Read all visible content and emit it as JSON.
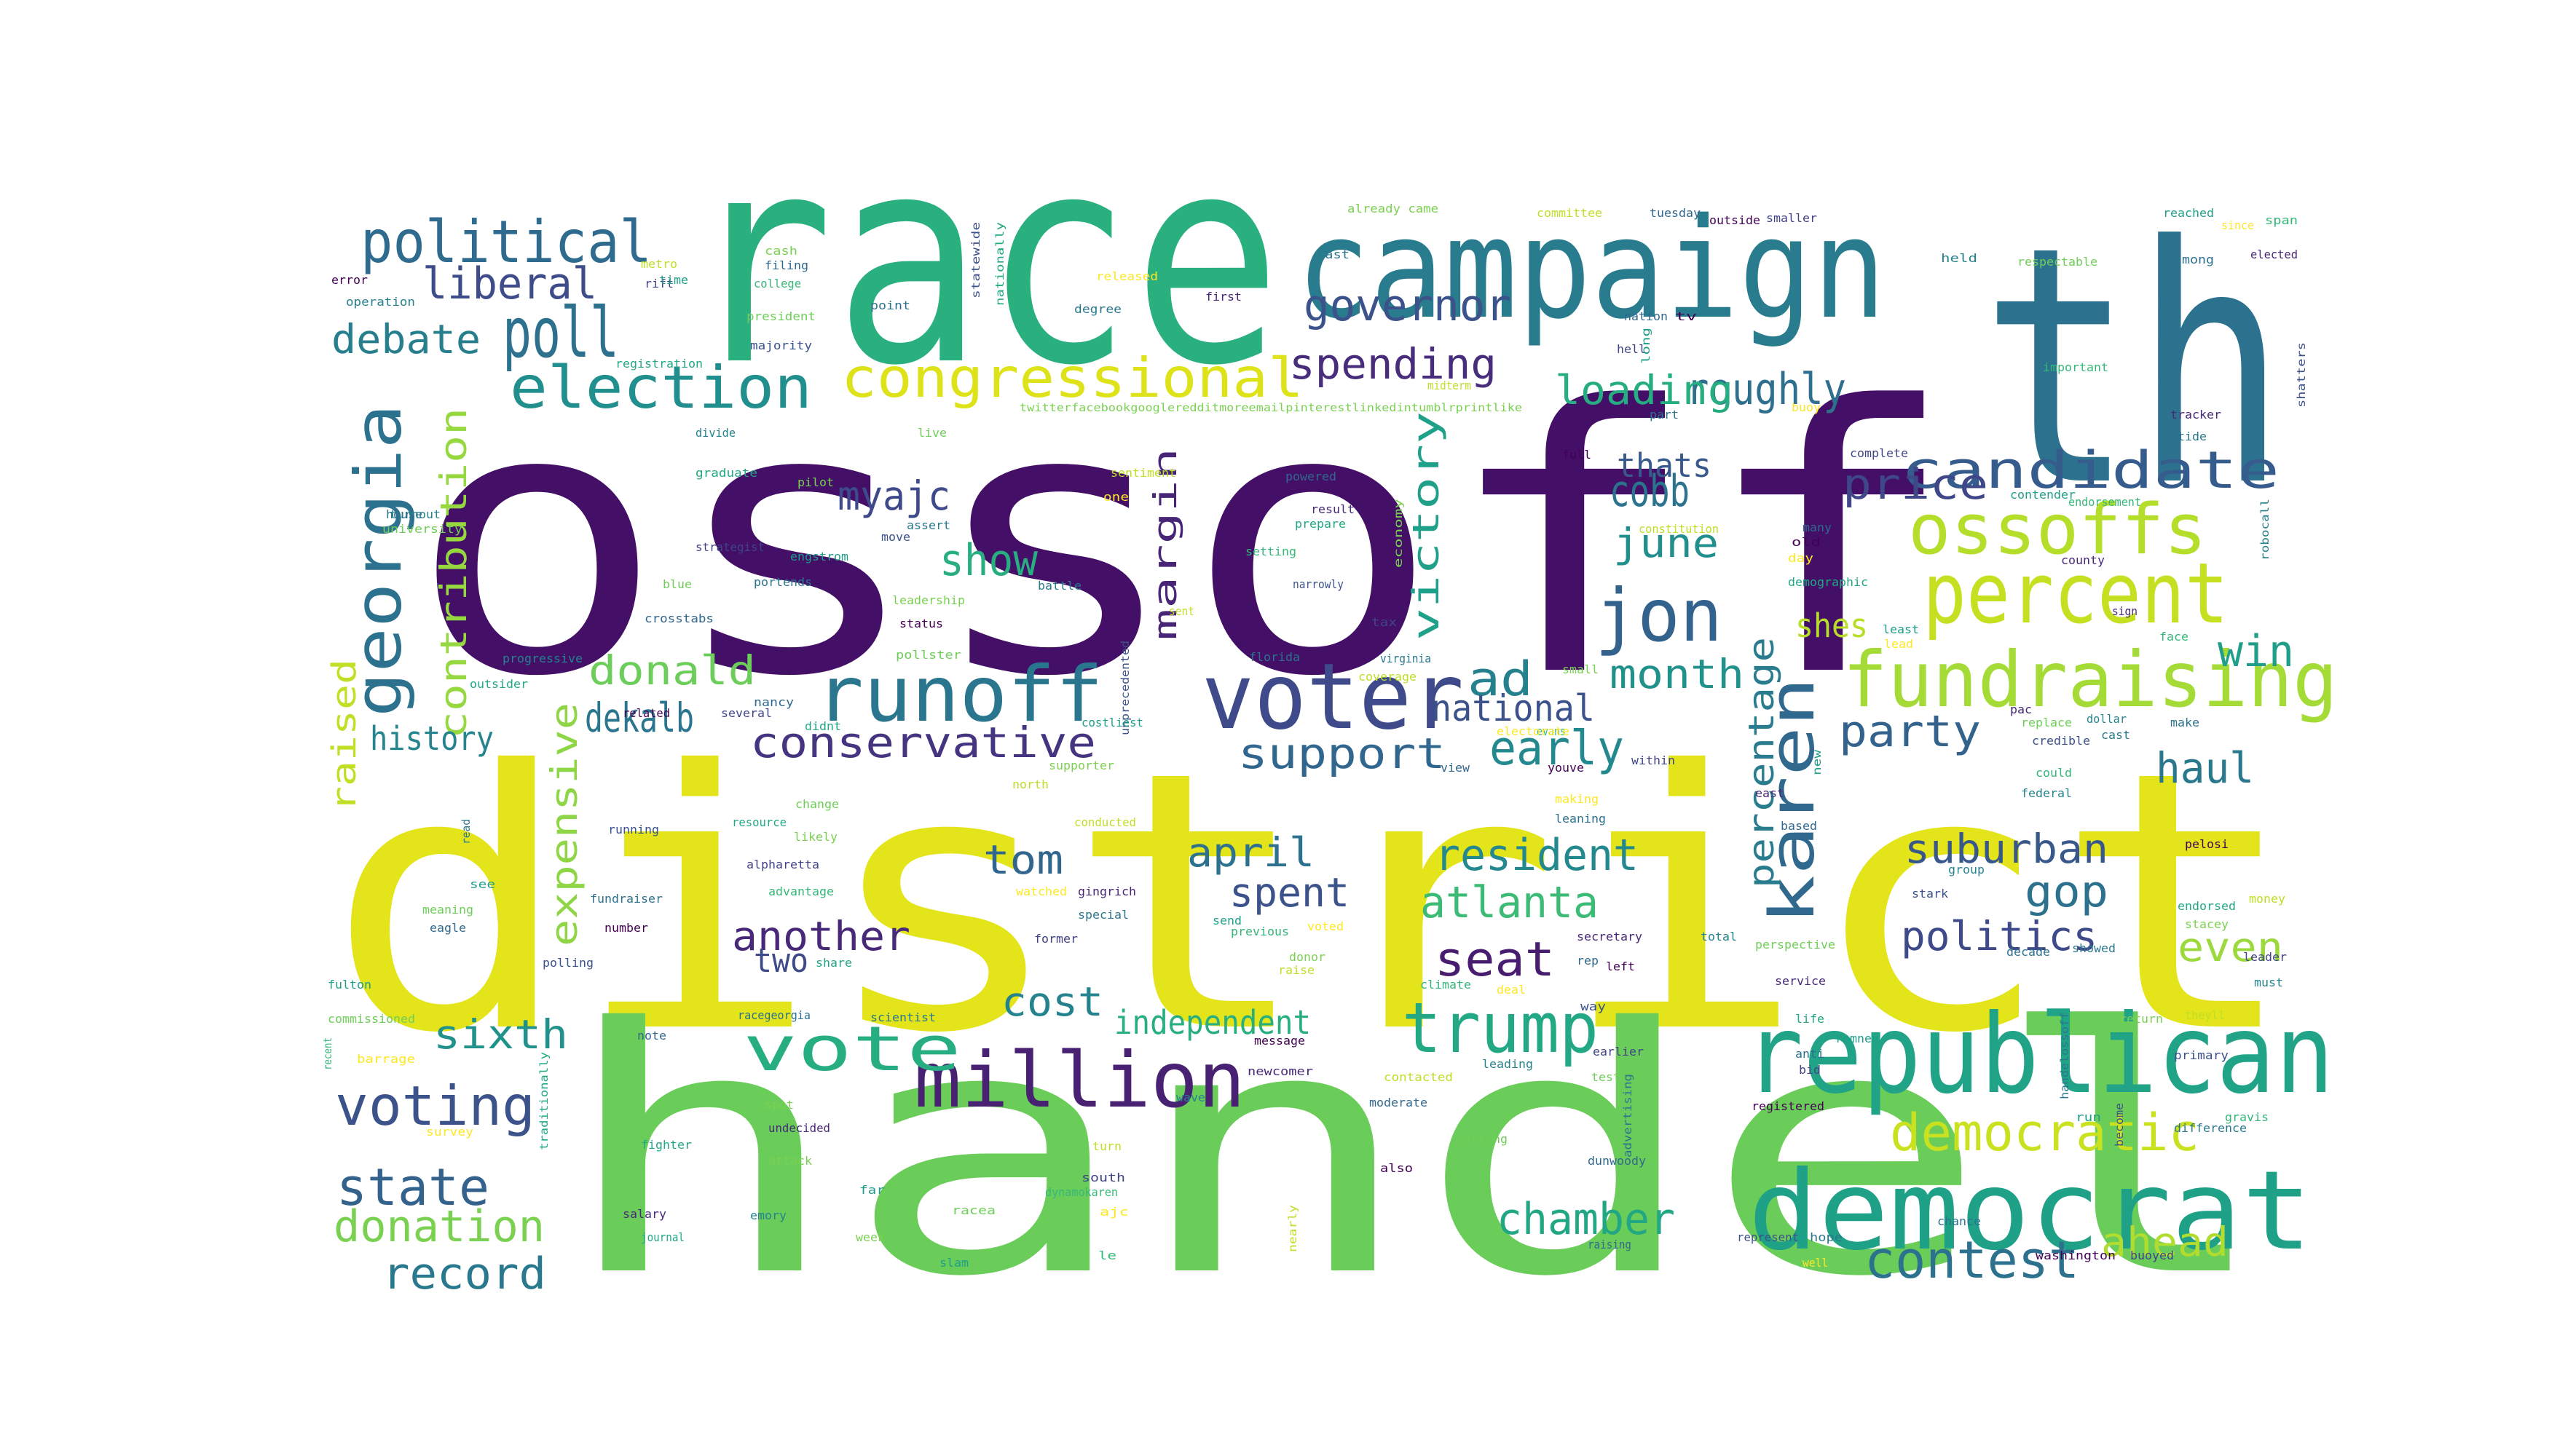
{
  "word_cloud": {
    "words": [
      {
        "text": "ossoff",
        "color": "#440f66"
      },
      {
        "text": "district",
        "color": "#e3e41a"
      },
      {
        "text": "handel",
        "color": "#6bcd59"
      },
      {
        "text": "race",
        "color": "#2ab07f"
      },
      {
        "text": "th",
        "color": "#2c728e"
      },
      {
        "text": "campaign",
        "color": "#297b8e"
      },
      {
        "text": "republican",
        "color": "#20a386"
      },
      {
        "text": "democrat",
        "color": "#1fa187"
      },
      {
        "text": "voter",
        "color": "#3e4a89"
      },
      {
        "text": "percent",
        "color": "#c5e021"
      },
      {
        "text": "fundraising",
        "color": "#a5db36"
      },
      {
        "text": "runoff",
        "color": "#2a768e"
      },
      {
        "text": "million",
        "color": "#482173"
      },
      {
        "text": "georgia",
        "color": "#2c718e"
      },
      {
        "text": "jon",
        "color": "#33638d"
      },
      {
        "text": "ossoffs",
        "color": "#b5de2b"
      },
      {
        "text": "karen",
        "color": "#31688e"
      },
      {
        "text": "trump",
        "color": "#22a884"
      },
      {
        "text": "political",
        "color": "#2f6b8e"
      },
      {
        "text": "congressional",
        "color": "#dde318"
      },
      {
        "text": "election",
        "color": "#218f8d"
      },
      {
        "text": "poll",
        "color": "#2d718e"
      },
      {
        "text": "vote",
        "color": "#26ad81"
      },
      {
        "text": "candidate",
        "color": "#365c8d"
      },
      {
        "text": "democratic",
        "color": "#cae11f"
      },
      {
        "text": "voting",
        "color": "#3b528b"
      },
      {
        "text": "chamber",
        "color": "#22a785"
      },
      {
        "text": "contest",
        "color": "#2c728e"
      },
      {
        "text": "state",
        "color": "#33638d"
      },
      {
        "text": "donation",
        "color": "#7ad151"
      },
      {
        "text": "record",
        "color": "#2a788e"
      },
      {
        "text": "liberal",
        "color": "#3e4c8a"
      },
      {
        "text": "governor",
        "color": "#3b528b"
      },
      {
        "text": "spending",
        "color": "#472d7b"
      },
      {
        "text": "roughly",
        "color": "#2e6f8e"
      },
      {
        "text": "loading",
        "color": "#26ad81"
      },
      {
        "text": "debate",
        "color": "#277f8e"
      },
      {
        "text": "myajc",
        "color": "#3e4a89"
      },
      {
        "text": "show",
        "color": "#28ae80"
      },
      {
        "text": "price",
        "color": "#3f4788"
      },
      {
        "text": "thats",
        "color": "#38598c"
      },
      {
        "text": "cobb",
        "color": "#2c738e"
      },
      {
        "text": "june",
        "color": "#218f8d"
      },
      {
        "text": "contribution",
        "color": "#95d840"
      },
      {
        "text": "margin",
        "color": "#482576"
      },
      {
        "text": "victory",
        "color": "#1fa088"
      },
      {
        "text": "donald",
        "color": "#6ccd5a"
      },
      {
        "text": "ad",
        "color": "#26818e"
      },
      {
        "text": "month",
        "color": "#21918c"
      },
      {
        "text": "shes",
        "color": "#b8de29"
      },
      {
        "text": "win",
        "color": "#1f9e89"
      },
      {
        "text": "percentage",
        "color": "#297b8e"
      },
      {
        "text": "party",
        "color": "#33638d"
      },
      {
        "text": "national",
        "color": "#3b528b"
      },
      {
        "text": "early",
        "color": "#23898e"
      },
      {
        "text": "support",
        "color": "#31668e"
      },
      {
        "text": "conservative",
        "color": "#453581"
      },
      {
        "text": "dekalb",
        "color": "#2b758e"
      },
      {
        "text": "history",
        "color": "#25848e"
      },
      {
        "text": "raised",
        "color": "#c0df25"
      },
      {
        "text": "expensive",
        "color": "#8ed645"
      },
      {
        "text": "haul",
        "color": "#2a788e"
      },
      {
        "text": "resident",
        "color": "#23898e"
      },
      {
        "text": "april",
        "color": "#2c718e"
      },
      {
        "text": "spent",
        "color": "#3b528b"
      },
      {
        "text": "tom",
        "color": "#31668e"
      },
      {
        "text": "atlanta",
        "color": "#3bbb75"
      },
      {
        "text": "another",
        "color": "#482878"
      },
      {
        "text": "two",
        "color": "#3e4a89"
      },
      {
        "text": "seat",
        "color": "#481c6e"
      },
      {
        "text": "suburban",
        "color": "#38588c"
      },
      {
        "text": "gop",
        "color": "#2c718e"
      },
      {
        "text": "politics",
        "color": "#3e4a89"
      },
      {
        "text": "even",
        "color": "#9bd93c"
      },
      {
        "text": "cost",
        "color": "#25838e"
      },
      {
        "text": "sixth",
        "color": "#21918c"
      },
      {
        "text": "independent",
        "color": "#29af7f"
      },
      {
        "text": "ahead",
        "color": "#b0dd2f"
      },
      {
        "text": "already came"
      },
      {
        "text": "committee"
      },
      {
        "text": "tuesday"
      },
      {
        "text": "outside"
      },
      {
        "text": "smaller"
      },
      {
        "text": "reached"
      },
      {
        "text": "span"
      },
      {
        "text": "since"
      },
      {
        "text": "elected"
      },
      {
        "text": "held"
      },
      {
        "text": "respectable"
      },
      {
        "text": "among"
      },
      {
        "text": "last"
      },
      {
        "text": "statewide"
      },
      {
        "text": "nationally"
      },
      {
        "text": "cash"
      },
      {
        "text": "metro"
      },
      {
        "text": "filing"
      },
      {
        "text": "error"
      },
      {
        "text": "rift"
      },
      {
        "text": "time"
      },
      {
        "text": "college"
      },
      {
        "text": "released"
      },
      {
        "text": "first"
      },
      {
        "text": "operation"
      },
      {
        "text": "president"
      },
      {
        "text": "point"
      },
      {
        "text": "degree"
      },
      {
        "text": "majority"
      },
      {
        "text": "registration"
      },
      {
        "text": "twitterfacebookgoogleredditmoreemailpinterestlinkedintumblrprintlike"
      },
      {
        "text": "midterm"
      },
      {
        "text": "nation"
      },
      {
        "text": "tv"
      },
      {
        "text": "hell"
      },
      {
        "text": "long"
      },
      {
        "text": "important"
      },
      {
        "text": "buoy"
      },
      {
        "text": "tracker"
      },
      {
        "text": "divide"
      },
      {
        "text": "live"
      },
      {
        "text": "part"
      },
      {
        "text": "tide"
      },
      {
        "text": "shatters"
      },
      {
        "text": "graduate"
      },
      {
        "text": "pilot"
      },
      {
        "text": "sentiment"
      },
      {
        "text": "powered"
      },
      {
        "text": "full"
      },
      {
        "text": "complete"
      },
      {
        "text": "contender"
      },
      {
        "text": "endorsement"
      },
      {
        "text": "one"
      },
      {
        "text": "result"
      },
      {
        "text": "turnout"
      },
      {
        "text": "university"
      },
      {
        "text": "house"
      },
      {
        "text": "assert"
      },
      {
        "text": "move"
      },
      {
        "text": "prepare"
      },
      {
        "text": "economy"
      },
      {
        "text": "constitution"
      },
      {
        "text": "many"
      },
      {
        "text": "old"
      },
      {
        "text": "strategist"
      },
      {
        "text": "engstrom"
      },
      {
        "text": "setting"
      },
      {
        "text": "day"
      },
      {
        "text": "county"
      },
      {
        "text": "robocall"
      },
      {
        "text": "blue"
      },
      {
        "text": "portends"
      },
      {
        "text": "battle"
      },
      {
        "text": "narrowly"
      },
      {
        "text": "demographic"
      },
      {
        "text": "leadership"
      },
      {
        "text": "sent"
      },
      {
        "text": "crosstabs"
      },
      {
        "text": "status"
      },
      {
        "text": "tax"
      },
      {
        "text": "least"
      },
      {
        "text": "face"
      },
      {
        "text": "lead"
      },
      {
        "text": "sign"
      },
      {
        "text": "progressive"
      },
      {
        "text": "pollster"
      },
      {
        "text": "florida"
      },
      {
        "text": "virginia"
      },
      {
        "text": "unprecedented"
      },
      {
        "text": "outsider"
      },
      {
        "text": "small"
      },
      {
        "text": "coverage"
      },
      {
        "text": "nancy"
      },
      {
        "text": "related"
      },
      {
        "text": "several"
      },
      {
        "text": "costliest"
      },
      {
        "text": "evans"
      },
      {
        "text": "electorate"
      },
      {
        "text": "pac"
      },
      {
        "text": "dollar"
      },
      {
        "text": "replace"
      },
      {
        "text": "make"
      },
      {
        "text": "cast"
      },
      {
        "text": "credible"
      },
      {
        "text": "didnt"
      },
      {
        "text": "supporter"
      },
      {
        "text": "north"
      },
      {
        "text": "view"
      },
      {
        "text": "youve"
      },
      {
        "text": "within"
      },
      {
        "text": "new"
      },
      {
        "text": "could"
      },
      {
        "text": "making"
      },
      {
        "text": "east"
      },
      {
        "text": "federal"
      },
      {
        "text": "change"
      },
      {
        "text": "leaning"
      },
      {
        "text": "read"
      },
      {
        "text": "running"
      },
      {
        "text": "resource"
      },
      {
        "text": "likely"
      },
      {
        "text": "conducted"
      },
      {
        "text": "based"
      },
      {
        "text": "pelosi"
      },
      {
        "text": "alpharetta"
      },
      {
        "text": "see"
      },
      {
        "text": "advantage"
      },
      {
        "text": "watched"
      },
      {
        "text": "gingrich"
      },
      {
        "text": "group"
      },
      {
        "text": "meaning"
      },
      {
        "text": "fundraiser"
      },
      {
        "text": "special"
      },
      {
        "text": "stark"
      },
      {
        "text": "endorsed"
      },
      {
        "text": "stacey"
      },
      {
        "text": "money"
      },
      {
        "text": "eagle"
      },
      {
        "text": "number"
      },
      {
        "text": "former"
      },
      {
        "text": "send"
      },
      {
        "text": "previous"
      },
      {
        "text": "voted"
      },
      {
        "text": "secretary"
      },
      {
        "text": "total"
      },
      {
        "text": "perspective"
      },
      {
        "text": "decade"
      },
      {
        "text": "showed"
      },
      {
        "text": "polling"
      },
      {
        "text": "share"
      },
      {
        "text": "donor"
      },
      {
        "text": "raise"
      },
      {
        "text": "rep"
      },
      {
        "text": "left"
      },
      {
        "text": "leader"
      },
      {
        "text": "fulton"
      },
      {
        "text": "climate"
      },
      {
        "text": "deal"
      },
      {
        "text": "service"
      },
      {
        "text": "must"
      },
      {
        "text": "commissioned"
      },
      {
        "text": "racegeorgia"
      },
      {
        "text": "scientist"
      },
      {
        "text": "way"
      },
      {
        "text": "life"
      },
      {
        "text": "return"
      },
      {
        "text": "theyll"
      },
      {
        "text": "note"
      },
      {
        "text": "message"
      },
      {
        "text": "earlier"
      },
      {
        "text": "romney"
      },
      {
        "text": "recent"
      },
      {
        "text": "barrage"
      },
      {
        "text": "newcomer"
      },
      {
        "text": "leading"
      },
      {
        "text": "test"
      },
      {
        "text": "anti"
      },
      {
        "text": "handelossoff"
      },
      {
        "text": "primary"
      },
      {
        "text": "traditionally"
      },
      {
        "text": "spot"
      },
      {
        "text": "contacted"
      },
      {
        "text": "moderate"
      },
      {
        "text": "registered"
      },
      {
        "text": "bid"
      },
      {
        "text": "run"
      },
      {
        "text": "gravis"
      },
      {
        "text": "survey"
      },
      {
        "text": "undecided"
      },
      {
        "text": "wave"
      },
      {
        "text": "backing"
      },
      {
        "text": "advertising"
      },
      {
        "text": "difference"
      },
      {
        "text": "become"
      },
      {
        "text": "fighter"
      },
      {
        "text": "attack"
      },
      {
        "text": "turn"
      },
      {
        "text": "dunwoody"
      },
      {
        "text": "also"
      },
      {
        "text": "south"
      },
      {
        "text": "far"
      },
      {
        "text": "dynamokaren"
      },
      {
        "text": "ajc"
      },
      {
        "text": "salary"
      },
      {
        "text": "emory"
      },
      {
        "text": "racea"
      },
      {
        "text": "chance"
      },
      {
        "text": "hope"
      },
      {
        "text": "represent"
      },
      {
        "text": "journal"
      },
      {
        "text": "week"
      },
      {
        "text": "nearly"
      },
      {
        "text": "raising"
      },
      {
        "text": "washington"
      },
      {
        "text": "buoyed"
      },
      {
        "text": "slam"
      },
      {
        "text": "le"
      },
      {
        "text": "well"
      }
    ]
  }
}
